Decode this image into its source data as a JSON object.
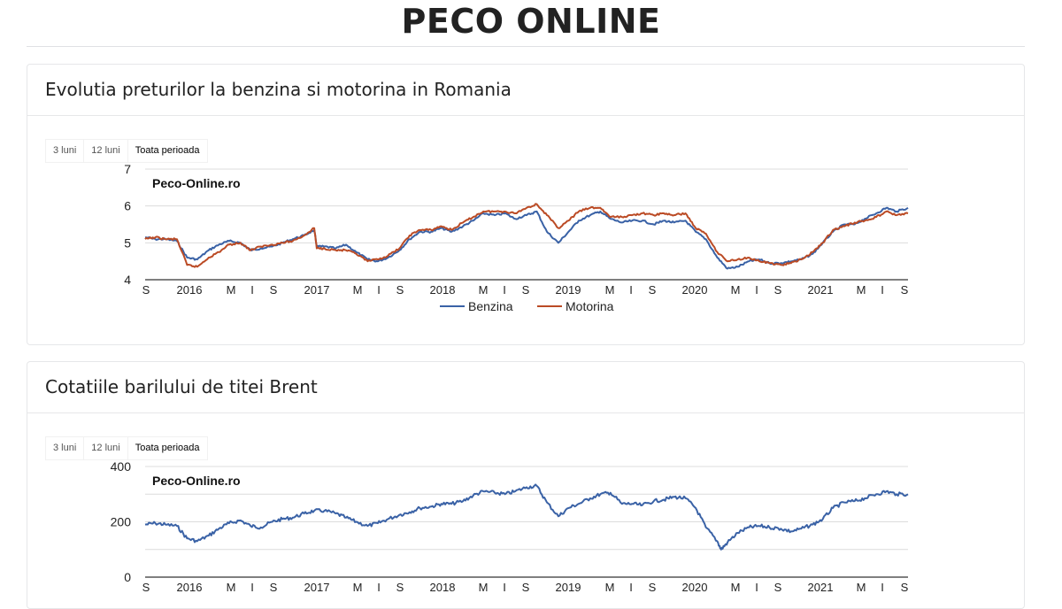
{
  "site_title": "PECO ONLINE",
  "range_options": [
    "3 luni",
    "12 luni",
    "Toata perioada"
  ],
  "range_selected": "Toata perioada",
  "watermark": "Peco-Online.ro",
  "chart_data": [
    {
      "type": "line",
      "title": "Evolutia preturilor la benzina si motorina in Romania",
      "x_tick_labels": [
        "S",
        "2016",
        "M",
        "I",
        "S",
        "2017",
        "M",
        "I",
        "S",
        "2018",
        "M",
        "I",
        "S",
        "2019",
        "M",
        "I",
        "S",
        "2020",
        "M",
        "I",
        "S",
        "2021",
        "M",
        "I",
        "S"
      ],
      "ylim": [
        4,
        7
      ],
      "y_ticks": [
        "4",
        "5",
        "6",
        "7"
      ],
      "grid": true,
      "legend_position": "bottom",
      "colors": {
        "Benzina": "#3a62a6",
        "Motorina": "#bb4b25"
      },
      "series": [
        {
          "name": "Benzina",
          "x": [
            2015.67,
            2015.75,
            2015.83,
            2015.92,
            2016.0,
            2016.08,
            2016.17,
            2016.25,
            2016.33,
            2016.42,
            2016.5,
            2016.58,
            2016.67,
            2016.75,
            2016.83,
            2016.92,
            2017.0,
            2017.02,
            2017.08,
            2017.17,
            2017.25,
            2017.33,
            2017.42,
            2017.5,
            2017.58,
            2017.67,
            2017.75,
            2017.83,
            2017.92,
            2018.0,
            2018.08,
            2018.17,
            2018.25,
            2018.33,
            2018.42,
            2018.5,
            2018.58,
            2018.67,
            2018.75,
            2018.83,
            2018.92,
            2019.0,
            2019.08,
            2019.17,
            2019.25,
            2019.33,
            2019.42,
            2019.5,
            2019.58,
            2019.67,
            2019.75,
            2019.83,
            2019.92,
            2020.0,
            2020.08,
            2020.17,
            2020.25,
            2020.33,
            2020.42,
            2020.5,
            2020.58,
            2020.67,
            2020.75,
            2020.83,
            2020.92,
            2021.0,
            2021.08,
            2021.17,
            2021.25,
            2021.33,
            2021.42,
            2021.5,
            2021.58,
            2021.67
          ],
          "y": [
            5.15,
            5.1,
            5.1,
            5.05,
            4.6,
            4.55,
            4.8,
            4.95,
            5.05,
            5.0,
            4.8,
            4.85,
            4.9,
            5.0,
            5.1,
            5.2,
            5.35,
            4.9,
            4.9,
            4.85,
            4.95,
            4.75,
            4.55,
            4.5,
            4.6,
            4.8,
            5.1,
            5.3,
            5.3,
            5.4,
            5.3,
            5.45,
            5.6,
            5.8,
            5.75,
            5.8,
            5.65,
            5.75,
            5.85,
            5.3,
            5.0,
            5.3,
            5.6,
            5.75,
            5.85,
            5.65,
            5.55,
            5.6,
            5.6,
            5.5,
            5.6,
            5.55,
            5.6,
            5.3,
            5.1,
            4.6,
            4.3,
            4.35,
            4.5,
            4.55,
            4.45,
            4.45,
            4.5,
            4.55,
            4.7,
            5.0,
            5.3,
            5.5,
            5.5,
            5.65,
            5.8,
            5.95,
            5.85,
            5.95
          ]
        },
        {
          "name": "Motorina",
          "x": [
            2015.67,
            2015.75,
            2015.83,
            2015.92,
            2016.0,
            2016.08,
            2016.17,
            2016.25,
            2016.33,
            2016.42,
            2016.5,
            2016.58,
            2016.67,
            2016.75,
            2016.83,
            2016.92,
            2017.0,
            2017.02,
            2017.08,
            2017.17,
            2017.25,
            2017.33,
            2017.42,
            2017.5,
            2017.58,
            2017.67,
            2017.75,
            2017.83,
            2017.92,
            2018.0,
            2018.08,
            2018.17,
            2018.25,
            2018.33,
            2018.42,
            2018.5,
            2018.58,
            2018.67,
            2018.75,
            2018.83,
            2018.92,
            2019.0,
            2019.08,
            2019.17,
            2019.25,
            2019.33,
            2019.42,
            2019.5,
            2019.58,
            2019.67,
            2019.75,
            2019.83,
            2019.92,
            2020.0,
            2020.08,
            2020.17,
            2020.25,
            2020.33,
            2020.42,
            2020.5,
            2020.58,
            2020.67,
            2020.75,
            2020.83,
            2020.92,
            2021.0,
            2021.08,
            2021.17,
            2021.25,
            2021.33,
            2021.42,
            2021.5,
            2021.58,
            2021.67
          ],
          "y": [
            5.1,
            5.15,
            5.1,
            5.1,
            4.4,
            4.35,
            4.6,
            4.75,
            4.95,
            5.0,
            4.8,
            4.9,
            4.95,
            5.0,
            5.05,
            5.2,
            5.4,
            4.85,
            4.85,
            4.8,
            4.8,
            4.7,
            4.5,
            4.55,
            4.65,
            4.85,
            5.2,
            5.35,
            5.35,
            5.45,
            5.35,
            5.55,
            5.7,
            5.85,
            5.85,
            5.85,
            5.8,
            5.95,
            6.05,
            5.75,
            5.4,
            5.6,
            5.85,
            5.95,
            5.95,
            5.7,
            5.7,
            5.75,
            5.8,
            5.75,
            5.8,
            5.75,
            5.8,
            5.4,
            5.25,
            4.75,
            4.5,
            4.55,
            4.6,
            4.5,
            4.45,
            4.4,
            4.45,
            4.55,
            4.75,
            5.0,
            5.35,
            5.45,
            5.55,
            5.6,
            5.7,
            5.85,
            5.75,
            5.8
          ]
        }
      ]
    },
    {
      "type": "line",
      "title": "Cotatiile barilului de titei Brent",
      "x_tick_labels": [
        "S",
        "2016",
        "M",
        "I",
        "S",
        "2017",
        "M",
        "I",
        "S",
        "2018",
        "M",
        "I",
        "S",
        "2019",
        "M",
        "I",
        "S",
        "2020",
        "M",
        "I",
        "S",
        "2021",
        "M",
        "I",
        "S"
      ],
      "ylim": [
        0,
        400
      ],
      "y_ticks": [
        "0",
        "200",
        "400"
      ],
      "grid": true,
      "colors": {
        "Brent": "#3a62a6"
      },
      "series": [
        {
          "x": [
            2015.67,
            2015.75,
            2015.83,
            2015.92,
            2016.0,
            2016.08,
            2016.17,
            2016.25,
            2016.33,
            2016.42,
            2016.5,
            2016.58,
            2016.67,
            2016.75,
            2016.83,
            2016.92,
            2017.0,
            2017.08,
            2017.17,
            2017.25,
            2017.33,
            2017.42,
            2017.5,
            2017.58,
            2017.67,
            2017.75,
            2017.83,
            2017.92,
            2018.0,
            2018.08,
            2018.17,
            2018.25,
            2018.33,
            2018.42,
            2018.5,
            2018.58,
            2018.67,
            2018.75,
            2018.83,
            2018.92,
            2019.0,
            2019.08,
            2019.17,
            2019.25,
            2019.33,
            2019.42,
            2019.5,
            2019.58,
            2019.67,
            2019.75,
            2019.83,
            2019.92,
            2020.0,
            2020.08,
            2020.17,
            2020.2,
            2020.25,
            2020.33,
            2020.42,
            2020.5,
            2020.58,
            2020.67,
            2020.75,
            2020.83,
            2020.92,
            2021.0,
            2021.08,
            2021.17,
            2021.25,
            2021.33,
            2021.42,
            2021.5,
            2021.58,
            2021.67
          ],
          "y": [
            190,
            195,
            190,
            185,
            140,
            130,
            150,
            175,
            195,
            205,
            185,
            180,
            200,
            210,
            215,
            230,
            240,
            240,
            230,
            215,
            200,
            185,
            195,
            210,
            225,
            235,
            250,
            255,
            265,
            265,
            275,
            295,
            310,
            305,
            300,
            310,
            325,
            330,
            270,
            220,
            250,
            265,
            285,
            300,
            305,
            265,
            265,
            260,
            275,
            280,
            290,
            285,
            250,
            180,
            130,
            100,
            125,
            160,
            180,
            185,
            180,
            175,
            165,
            175,
            190,
            210,
            250,
            270,
            275,
            285,
            300,
            310,
            300,
            300
          ]
        }
      ]
    }
  ]
}
